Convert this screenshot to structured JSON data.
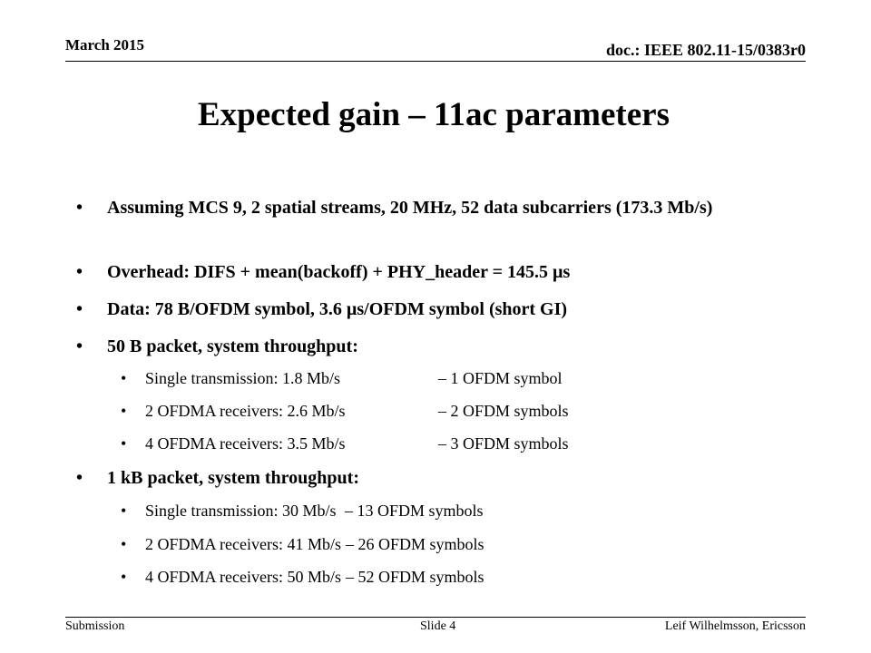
{
  "header": {
    "date": "March 2015",
    "doc": "doc.: IEEE 802.11-15/0383r0"
  },
  "title": "Expected gain – 11ac parameters",
  "bullets": [
    {
      "text": "Assuming MCS 9,  2 spatial streams, 20 MHz, 52 data subcarriers (173.3 Mb/s)"
    },
    {
      "text": "Overhead: DIFS + mean(backoff) + PHY_header = 145.5 µs"
    },
    {
      "text": "Data: 78 B/OFDM symbol, 3.6 µs/OFDM symbol (short GI)"
    },
    {
      "text": "50 B packet, system throughput:",
      "subs": [
        {
          "text": "Single transmission: 1.8 Mb/s",
          "note": "– 1 OFDM symbol"
        },
        {
          "text": "2 OFDMA receivers: 2.6 Mb/s",
          "note": "– 2 OFDM symbols"
        },
        {
          "text": "4 OFDMA receivers: 3.5 Mb/s",
          "note": "– 3 OFDM symbols"
        }
      ]
    },
    {
      "text": "1 kB packet, system throughput:",
      "subs": [
        {
          "text": "Single transmission: 30 Mb/s",
          "note": "– 13 OFDM symbols"
        },
        {
          "text": "2 OFDMA receivers: 41 Mb/s",
          "note": "– 26 OFDM symbols"
        },
        {
          "text": "4 OFDMA receivers: 50 Mb/s",
          "note": "– 52 OFDM symbols"
        }
      ]
    }
  ],
  "footer": {
    "left": "Submission",
    "center": "Slide 4",
    "right": "Leif Wilhelmsson,  Ericsson"
  }
}
